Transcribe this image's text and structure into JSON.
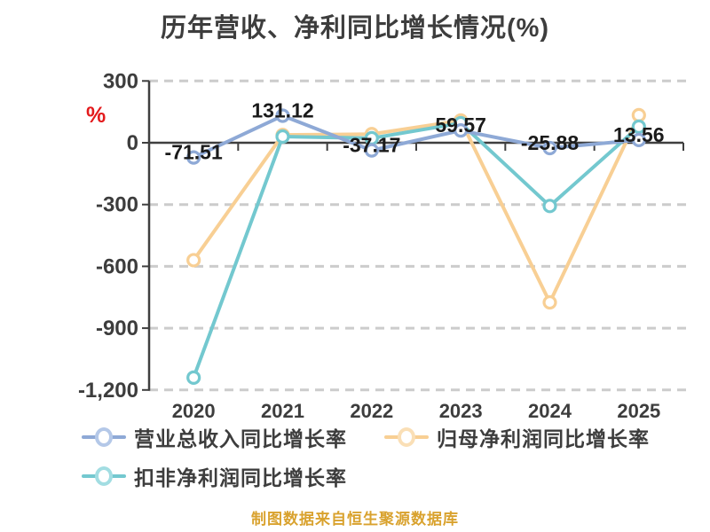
{
  "chart_data": {
    "type": "line",
    "title": "历年营收、净利同比增长情况(%)",
    "xlabel": "",
    "ylabel": "%",
    "categories": [
      "2020",
      "2021",
      "2022",
      "2023",
      "2024",
      "2025"
    ],
    "series": [
      {
        "name": "营业总收入同比增长率",
        "color": "#8ea9d6",
        "legend_ring": "#b4c8e8",
        "values": [
          -71.51,
          131.12,
          -37.17,
          59.57,
          -25.88,
          13.56
        ],
        "labeled": true
      },
      {
        "name": "归母净利润同比增长率",
        "color": "#f8cf94",
        "legend_ring": "#fadfb6",
        "values": [
          -570,
          38,
          42,
          108,
          -775,
          134
        ],
        "labeled": false
      },
      {
        "name": "扣非净利润同比增长率",
        "color": "#73c8cf",
        "legend_ring": "#a2dde2",
        "values": [
          -1140,
          30,
          22,
          95,
          -307,
          78
        ],
        "labeled": false
      }
    ],
    "ylim": [
      -1200,
      300
    ],
    "grid": "horizontal dashed",
    "legend_position": "bottom-left"
  },
  "y_axis": {
    "unit": "%",
    "tick_labels": [
      "300",
      "0",
      "-300",
      "-600",
      "-900",
      "-1,200"
    ],
    "tick_values": [
      300,
      0,
      -300,
      -600,
      -900,
      -1200
    ]
  },
  "source_note": "制图数据来自恒生聚源数据库",
  "colors": {
    "grid_line": "#cccccc",
    "axis_line": "#3f3f3f",
    "tick_text": "#3d3d3d",
    "data_label": "#1a1a1a",
    "unit_label": "#e31a1c",
    "source_note": "#d9a22e",
    "background": "#ffffff"
  }
}
